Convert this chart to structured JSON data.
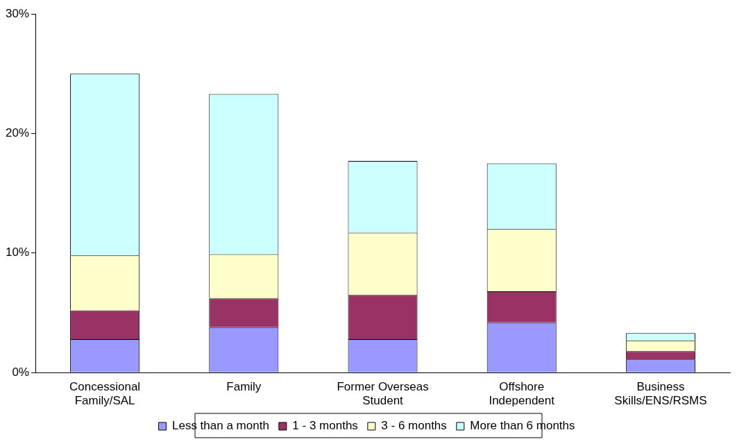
{
  "chart_data": {
    "type": "bar",
    "stacked": true,
    "categories": [
      "Concessional Family/SAL",
      "Family",
      "Former Overseas Student",
      "Offshore Independent",
      "Business Skills/ENS/RSMS"
    ],
    "series": [
      {
        "name": "Less than a month",
        "color": "#9999ff",
        "values": [
          2.8,
          3.8,
          2.8,
          4.2,
          1.1
        ]
      },
      {
        "name": "1 - 3 months",
        "color": "#993366",
        "values": [
          2.4,
          2.4,
          3.7,
          2.6,
          0.7
        ]
      },
      {
        "name": "3 - 6 months",
        "color": "#ffffcc",
        "values": [
          4.6,
          3.7,
          5.2,
          5.2,
          0.9
        ]
      },
      {
        "name": "More than 6 months",
        "color": "#ccffff",
        "values": [
          15.2,
          13.4,
          6.0,
          5.5,
          0.6
        ]
      }
    ],
    "ylim": [
      0,
      30
    ],
    "yticks": [
      {
        "value": 0,
        "label": "0%"
      },
      {
        "value": 10,
        "label": "10%"
      },
      {
        "value": 20,
        "label": "20%"
      },
      {
        "value": 30,
        "label": "30%"
      }
    ],
    "grid": false,
    "legend": "bottom"
  }
}
